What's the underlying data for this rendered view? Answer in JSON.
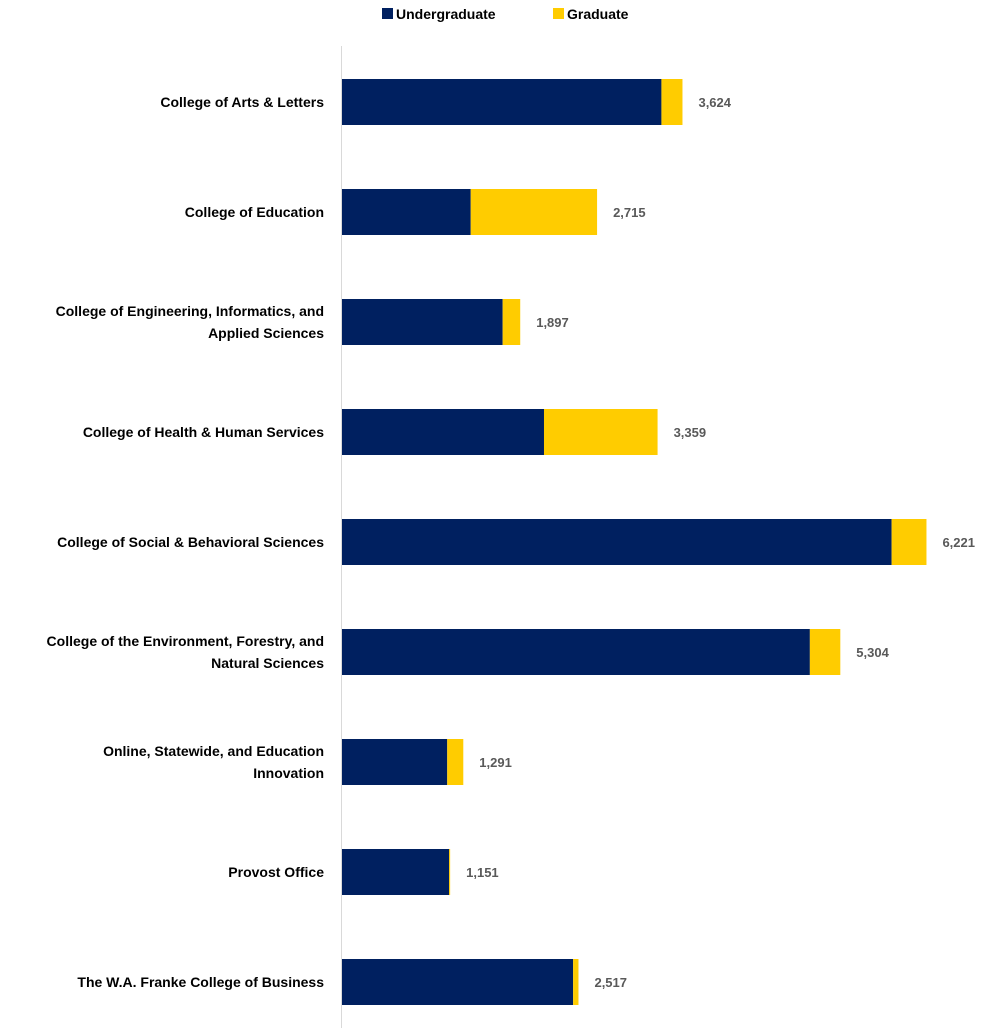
{
  "chart_data": {
    "type": "bar",
    "orientation": "horizontal",
    "stacked": true,
    "title": "",
    "xlabel": "",
    "ylabel": "",
    "xlim": [
      0,
      6600
    ],
    "grid": false,
    "legend_position": "top",
    "categories": [
      [
        "College of Arts & Letters"
      ],
      [
        "College of Education"
      ],
      [
        "College of Engineering, Informatics, and",
        "Applied Sciences"
      ],
      [
        "College of Health & Human Services"
      ],
      [
        "College of Social & Behavioral Sciences"
      ],
      [
        "College of the Environment, Forestry, and",
        "Natural Sciences"
      ],
      [
        "Online, Statewide, and Education",
        "Innovation"
      ],
      [
        "Provost Office"
      ],
      [
        "The W.A. Franke College of Business"
      ]
    ],
    "series": [
      {
        "name": "Undergraduate",
        "color": "#002060",
        "values": [
          3400,
          1370,
          1710,
          2150,
          5850,
          4980,
          1120,
          1140,
          2460
        ]
      },
      {
        "name": "Graduate",
        "color": "#FFCC00",
        "values": [
          224,
          1345,
          187,
          1209,
          371,
          324,
          171,
          11,
          57
        ]
      }
    ],
    "totals": [
      "3,624",
      "2,715",
      "1,897",
      "3,359",
      "6,221",
      "5,304",
      "1,291",
      "1,151",
      "2,517"
    ]
  }
}
